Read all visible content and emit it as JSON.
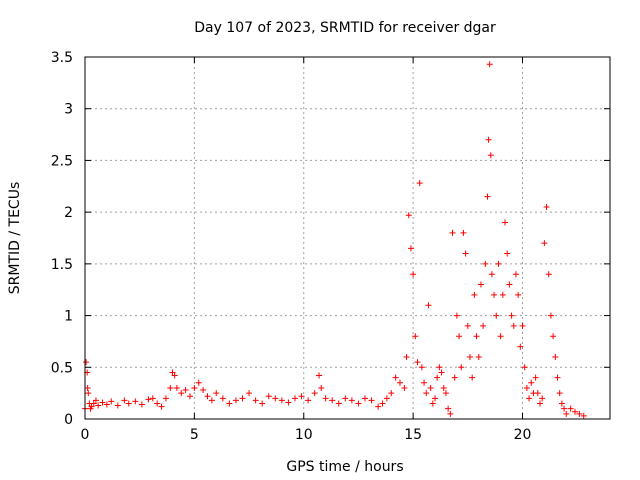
{
  "chart_data": {
    "type": "scatter",
    "title": "Day 107 of 2023, SRMTID for receiver dgar",
    "xlabel": "GPS time / hours",
    "ylabel": "SRMTID / TECUs",
    "xlim": [
      0,
      24
    ],
    "ylim": [
      0,
      3.5
    ],
    "grid": true,
    "x_ticks": [
      0,
      5,
      10,
      15,
      20
    ],
    "y_ticks": [
      0,
      0.5,
      1,
      1.5,
      2,
      2.5,
      3,
      3.5
    ],
    "x_tick_labels": [
      "0",
      "5",
      "10",
      "15",
      "20"
    ],
    "y_tick_labels": [
      "0",
      "0.5",
      "1",
      "1.5",
      "2",
      "2.5",
      "3",
      "3.5"
    ],
    "marker": "+",
    "series": [
      {
        "name": "SRMTID",
        "color": "#ff0000",
        "x": [
          0.0,
          0.05,
          0.1,
          0.12,
          0.15,
          0.2,
          0.25,
          0.3,
          0.4,
          0.5,
          0.6,
          0.8,
          1.0,
          1.2,
          1.5,
          1.8,
          2.0,
          2.3,
          2.6,
          2.9,
          3.1,
          3.3,
          3.5,
          3.7,
          3.9,
          4.0,
          4.1,
          4.2,
          4.4,
          4.6,
          4.8,
          5.0,
          5.2,
          5.4,
          5.6,
          5.8,
          6.0,
          6.3,
          6.6,
          6.9,
          7.2,
          7.5,
          7.8,
          8.1,
          8.4,
          8.7,
          9.0,
          9.3,
          9.6,
          9.9,
          10.2,
          10.5,
          10.7,
          10.8,
          11.0,
          11.3,
          11.6,
          11.9,
          12.2,
          12.5,
          12.8,
          13.1,
          13.4,
          13.6,
          13.8,
          14.0,
          14.2,
          14.4,
          14.6,
          14.7,
          14.8,
          14.9,
          15.0,
          15.1,
          15.2,
          15.3,
          15.4,
          15.5,
          15.6,
          15.7,
          15.8,
          15.9,
          16.0,
          16.1,
          16.2,
          16.3,
          16.4,
          16.5,
          16.6,
          16.7,
          16.8,
          16.9,
          17.0,
          17.1,
          17.2,
          17.3,
          17.4,
          17.5,
          17.6,
          17.7,
          17.8,
          17.9,
          18.0,
          18.1,
          18.2,
          18.3,
          18.4,
          18.45,
          18.5,
          18.55,
          18.6,
          18.7,
          18.8,
          18.9,
          19.0,
          19.1,
          19.2,
          19.3,
          19.4,
          19.5,
          19.6,
          19.7,
          19.8,
          19.9,
          20.0,
          20.1,
          20.2,
          20.3,
          20.4,
          20.5,
          20.6,
          20.7,
          20.8,
          20.9,
          21.0,
          21.1,
          21.2,
          21.3,
          21.4,
          21.5,
          21.6,
          21.7,
          21.8,
          21.9,
          22.0,
          22.2,
          22.4,
          22.6,
          22.8
        ],
        "y": [
          0.1,
          0.55,
          0.45,
          0.3,
          0.25,
          0.15,
          0.1,
          0.12,
          0.15,
          0.18,
          0.13,
          0.16,
          0.14,
          0.17,
          0.13,
          0.18,
          0.15,
          0.17,
          0.14,
          0.19,
          0.2,
          0.15,
          0.12,
          0.2,
          0.3,
          0.45,
          0.42,
          0.3,
          0.25,
          0.28,
          0.22,
          0.3,
          0.35,
          0.28,
          0.22,
          0.18,
          0.25,
          0.2,
          0.15,
          0.18,
          0.2,
          0.25,
          0.18,
          0.15,
          0.22,
          0.2,
          0.18,
          0.16,
          0.2,
          0.22,
          0.18,
          0.25,
          0.42,
          0.3,
          0.2,
          0.18,
          0.15,
          0.2,
          0.18,
          0.15,
          0.2,
          0.18,
          0.12,
          0.15,
          0.2,
          0.25,
          0.4,
          0.35,
          0.3,
          0.6,
          1.97,
          1.65,
          1.4,
          0.8,
          0.55,
          2.28,
          0.5,
          0.35,
          0.25,
          1.1,
          0.3,
          0.15,
          0.2,
          0.4,
          0.5,
          0.45,
          0.3,
          0.25,
          0.1,
          0.05,
          1.8,
          0.4,
          1.0,
          0.8,
          0.5,
          1.8,
          1.6,
          0.9,
          0.6,
          0.4,
          1.2,
          0.8,
          0.6,
          1.3,
          0.9,
          1.5,
          2.15,
          2.7,
          3.43,
          2.55,
          1.4,
          1.2,
          1.0,
          1.5,
          0.8,
          1.2,
          1.9,
          1.6,
          1.3,
          1.0,
          0.9,
          1.4,
          1.2,
          0.7,
          0.9,
          0.5,
          0.3,
          0.2,
          0.35,
          0.25,
          0.4,
          0.25,
          0.15,
          0.2,
          1.7,
          2.05,
          1.4,
          1.0,
          0.8,
          0.6,
          0.4,
          0.25,
          0.15,
          0.1,
          0.05,
          0.1,
          0.07,
          0.05,
          0.03
        ]
      }
    ]
  }
}
